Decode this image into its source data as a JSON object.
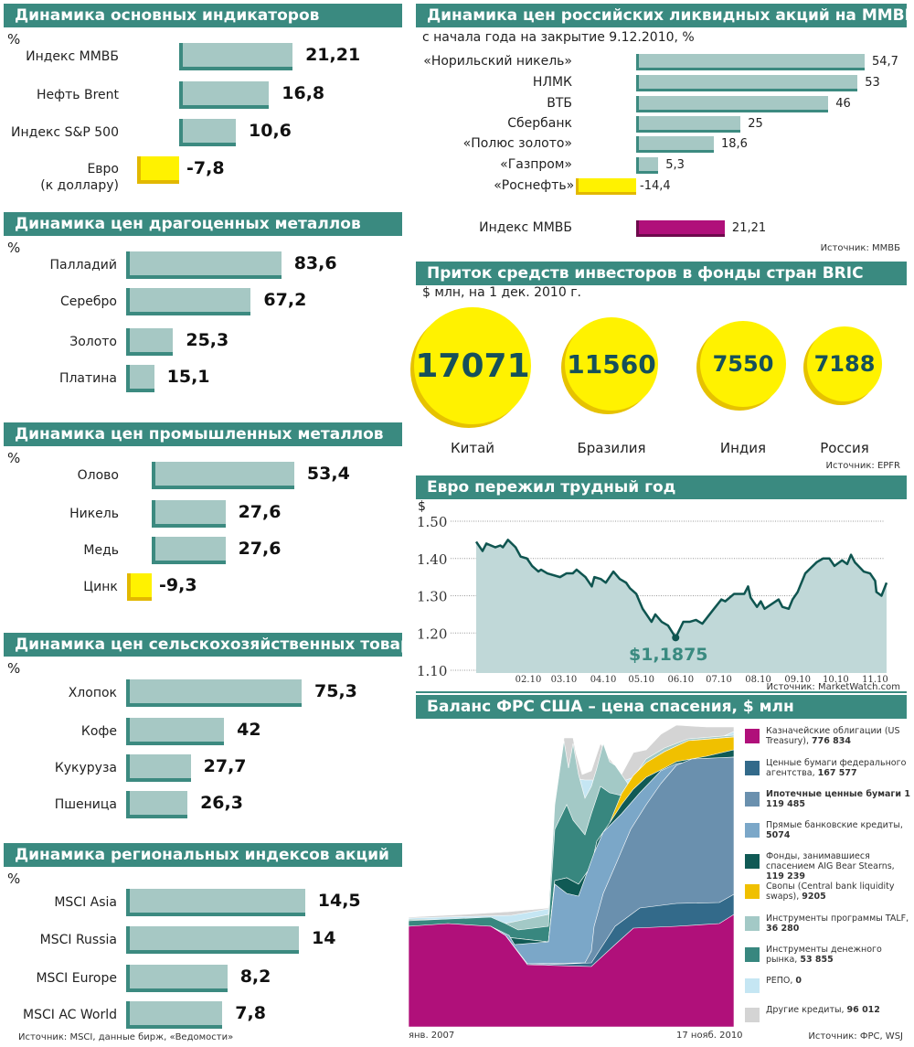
{
  "chart_data": [
    {
      "type": "bar",
      "title": "Динамика основных индикаторов",
      "unit": "%",
      "categories": [
        "Индекс ММВБ",
        "Нефть Brent",
        "Индекс S&P 500",
        "Евро\n(к доллару)"
      ],
      "values": [
        21.21,
        16.8,
        10.6,
        -7.8
      ],
      "labels": [
        "21,21",
        "16,8",
        "10,6",
        "-7,8"
      ]
    },
    {
      "type": "bar",
      "title": "Динамика цен драгоценных металлов",
      "unit": "%",
      "categories": [
        "Палладий",
        "Серебро",
        "Золото",
        "Платина"
      ],
      "values": [
        83.6,
        67.2,
        25.3,
        15.1
      ],
      "labels": [
        "83,6",
        "67,2",
        "25,3",
        "15,1"
      ]
    },
    {
      "type": "bar",
      "title": "Динамика цен промышленных металлов",
      "unit": "%",
      "categories": [
        "Олово",
        "Никель",
        "Медь",
        "Цинк"
      ],
      "values": [
        53.4,
        27.6,
        27.6,
        -9.3
      ],
      "labels": [
        "53,4",
        "27,6",
        "27,6",
        "-9,3"
      ]
    },
    {
      "type": "bar",
      "title": "Динамика цен сельскохозяйственных товаров",
      "unit": "%",
      "categories": [
        "Хлопок",
        "Кофе",
        "Кукуруза",
        "Пшеница"
      ],
      "values": [
        75.3,
        42,
        27.7,
        26.3
      ],
      "labels": [
        "75,3",
        "42",
        "27,7",
        "26,3"
      ]
    },
    {
      "type": "bar",
      "title": "Динамика региональных индексов акций",
      "unit": "%",
      "categories": [
        "MSCI Asia",
        "MSCI Russia",
        "MSCI Europe",
        "MSCI AC World"
      ],
      "values": [
        14.5,
        14,
        8.2,
        7.8
      ],
      "labels": [
        "14,5",
        "14",
        "8,2",
        "7,8"
      ],
      "source": "Источник: MSCI, данные бирж, «Ведомости»"
    },
    {
      "type": "bar",
      "title": "Динамика цен российских ликвидных акций на ММВБ",
      "subtitle": "с начала года на закрытие 9.12.2010, %",
      "categories": [
        "«Норильский никель»",
        "НЛМК",
        "ВТБ",
        "Сбербанк",
        "«Полюс золото»",
        "«Газпром»",
        "«Роснефть»",
        "Индекс ММВБ"
      ],
      "values": [
        54.7,
        53,
        46,
        25,
        18.6,
        5.3,
        -14.4,
        21.21
      ],
      "labels": [
        "54,7",
        "53",
        "46",
        "25",
        "18,6",
        "5,3",
        "-14,4",
        "21,21"
      ],
      "colors": {
        "positive": "#a6c8c4",
        "negative": "#fff200",
        "index": "#b0107a"
      },
      "source": "Источник: ММВБ"
    },
    {
      "type": "bubble",
      "title": "Приток средств инвесторов в фонды стран BRIC",
      "subtitle": "$ млн, на 1 дек. 2010 г.",
      "categories": [
        "Китай",
        "Бразилия",
        "Индия",
        "Россия"
      ],
      "values": [
        17071,
        11560,
        7550,
        7188
      ],
      "source": "Источник: EPFR"
    },
    {
      "type": "area",
      "title": "Евро пережил трудный год",
      "ylabel": "$",
      "ylim": [
        1.1,
        1.5
      ],
      "yticks": [
        "1.10",
        "1.20",
        "1.30",
        "1.40",
        "1.50"
      ],
      "xlim": [
        "2009-12-22",
        "2010-11-10"
      ],
      "xticks": [
        {
          "date": "2010-02-01",
          "label": "02.10"
        },
        {
          "date": "2010-03-01",
          "label": "03.10"
        },
        {
          "date": "2010-04-01",
          "label": "04.10"
        },
        {
          "date": "2010-05-01",
          "label": "05.10"
        },
        {
          "date": "2010-06-01",
          "label": "06.10"
        },
        {
          "date": "2010-07-01",
          "label": "07.10"
        },
        {
          "date": "2010-08-01",
          "label": "08.10"
        },
        {
          "date": "2010-09-01",
          "label": "09.10"
        },
        {
          "date": "2010-10-01",
          "label": "10.10"
        },
        {
          "date": "2010-11-01",
          "label": "11.10"
        }
      ],
      "grid": true,
      "annotation": {
        "date": "2010-05-28",
        "value": 1.1875,
        "label": "$1,1875"
      },
      "series": [
        [
          "2009-12-22",
          1.445
        ],
        [
          "2009-12-27",
          1.42
        ],
        [
          "2009-12-30",
          1.44
        ],
        [
          "2010-01-06",
          1.43
        ],
        [
          "2010-01-10",
          1.435
        ],
        [
          "2010-01-12",
          1.43
        ],
        [
          "2010-01-16",
          1.45
        ],
        [
          "2010-01-22",
          1.43
        ],
        [
          "2010-01-26",
          1.405
        ],
        [
          "2010-01-31",
          1.4
        ],
        [
          "2010-02-04",
          1.38
        ],
        [
          "2010-02-09",
          1.365
        ],
        [
          "2010-02-11",
          1.37
        ],
        [
          "2010-02-16",
          1.36
        ],
        [
          "2010-02-26",
          1.35
        ],
        [
          "2010-03-03",
          1.36
        ],
        [
          "2010-03-08",
          1.36
        ],
        [
          "2010-03-11",
          1.37
        ],
        [
          "2010-03-18",
          1.35
        ],
        [
          "2010-03-23",
          1.325
        ],
        [
          "2010-03-25",
          1.35
        ],
        [
          "2010-03-30",
          1.345
        ],
        [
          "2010-04-03",
          1.335
        ],
        [
          "2010-04-09",
          1.365
        ],
        [
          "2010-04-14",
          1.345
        ],
        [
          "2010-04-19",
          1.335
        ],
        [
          "2010-04-22",
          1.32
        ],
        [
          "2010-04-27",
          1.305
        ],
        [
          "2010-05-02",
          1.265
        ],
        [
          "2010-05-09",
          1.23
        ],
        [
          "2010-05-12",
          1.25
        ],
        [
          "2010-05-17",
          1.23
        ],
        [
          "2010-05-22",
          1.22
        ],
        [
          "2010-05-28",
          1.1875
        ],
        [
          "2010-06-03",
          1.23
        ],
        [
          "2010-06-08",
          1.23
        ],
        [
          "2010-06-13",
          1.235
        ],
        [
          "2010-06-18",
          1.225
        ],
        [
          "2010-06-26",
          1.26
        ],
        [
          "2010-07-03",
          1.29
        ],
        [
          "2010-07-06",
          1.285
        ],
        [
          "2010-07-13",
          1.305
        ],
        [
          "2010-07-21",
          1.305
        ],
        [
          "2010-07-24",
          1.325
        ],
        [
          "2010-07-26",
          1.295
        ],
        [
          "2010-07-31",
          1.27
        ],
        [
          "2010-08-03",
          1.285
        ],
        [
          "2010-08-06",
          1.265
        ],
        [
          "2010-08-17",
          1.29
        ],
        [
          "2010-08-20",
          1.27
        ],
        [
          "2010-08-25",
          1.265
        ],
        [
          "2010-08-28",
          1.29
        ],
        [
          "2010-09-01",
          1.31
        ],
        [
          "2010-09-07",
          1.36
        ],
        [
          "2010-09-16",
          1.39
        ],
        [
          "2010-09-21",
          1.4
        ],
        [
          "2010-09-26",
          1.4
        ],
        [
          "2010-09-30",
          1.38
        ],
        [
          "2010-10-06",
          1.395
        ],
        [
          "2010-10-10",
          1.385
        ],
        [
          "2010-10-13",
          1.41
        ],
        [
          "2010-10-16",
          1.39
        ],
        [
          "2010-10-23",
          1.365
        ],
        [
          "2010-10-28",
          1.36
        ],
        [
          "2010-11-01",
          1.34
        ],
        [
          "2010-11-02",
          1.31
        ],
        [
          "2010-11-06",
          1.3
        ],
        [
          "2010-11-10",
          1.335
        ]
      ],
      "colors": {
        "line": "#0f5550",
        "area": "#c0d8d8"
      },
      "source": "Источник: MarketWatch.com"
    },
    {
      "type": "stacked-area",
      "title": "Баланс ФРС США – цена спасения, $ млн",
      "x_labels": [
        "янв. 2007",
        "17 нояб. 2010"
      ],
      "legend": [
        {
          "label": "Казначейские облигации (US Treasury), ",
          "value": "776 834",
          "color": "#b0107a"
        },
        {
          "label": "Ценные бумаги федерального агентства, ",
          "value": "167 577",
          "color": "#336a8a"
        },
        {
          "label": "Ипотечные ценные бумаги ",
          "value": "1 119 485",
          "color": "#6a90ae",
          "bold": true
        },
        {
          "label": "Прямые банковские кредиты, ",
          "value": "5074",
          "color": "#7ba7c8"
        },
        {
          "label": "Фонды, занимавшиеся спасением AIG Bear Stearns, ",
          "value": "119 239",
          "color": "#105a55"
        },
        {
          "label": "Свопы (Central bank liquidity swaps), ",
          "value": "9205",
          "color": "#f0c000"
        },
        {
          "label": "Инструменты программы TALF, ",
          "value": "36 280",
          "color": "#a3c9c6"
        },
        {
          "label": "Инструменты денежного рынка, ",
          "value": "53 855",
          "color": "#38877f"
        },
        {
          "label": "РЕПО, ",
          "value": "0",
          "color": "#c5e6f3"
        },
        {
          "label": "Другие кредиты, ",
          "value": "96 012",
          "color": "#d4d4d4"
        }
      ],
      "source": "Источник: ФРС, WSJ"
    }
  ]
}
